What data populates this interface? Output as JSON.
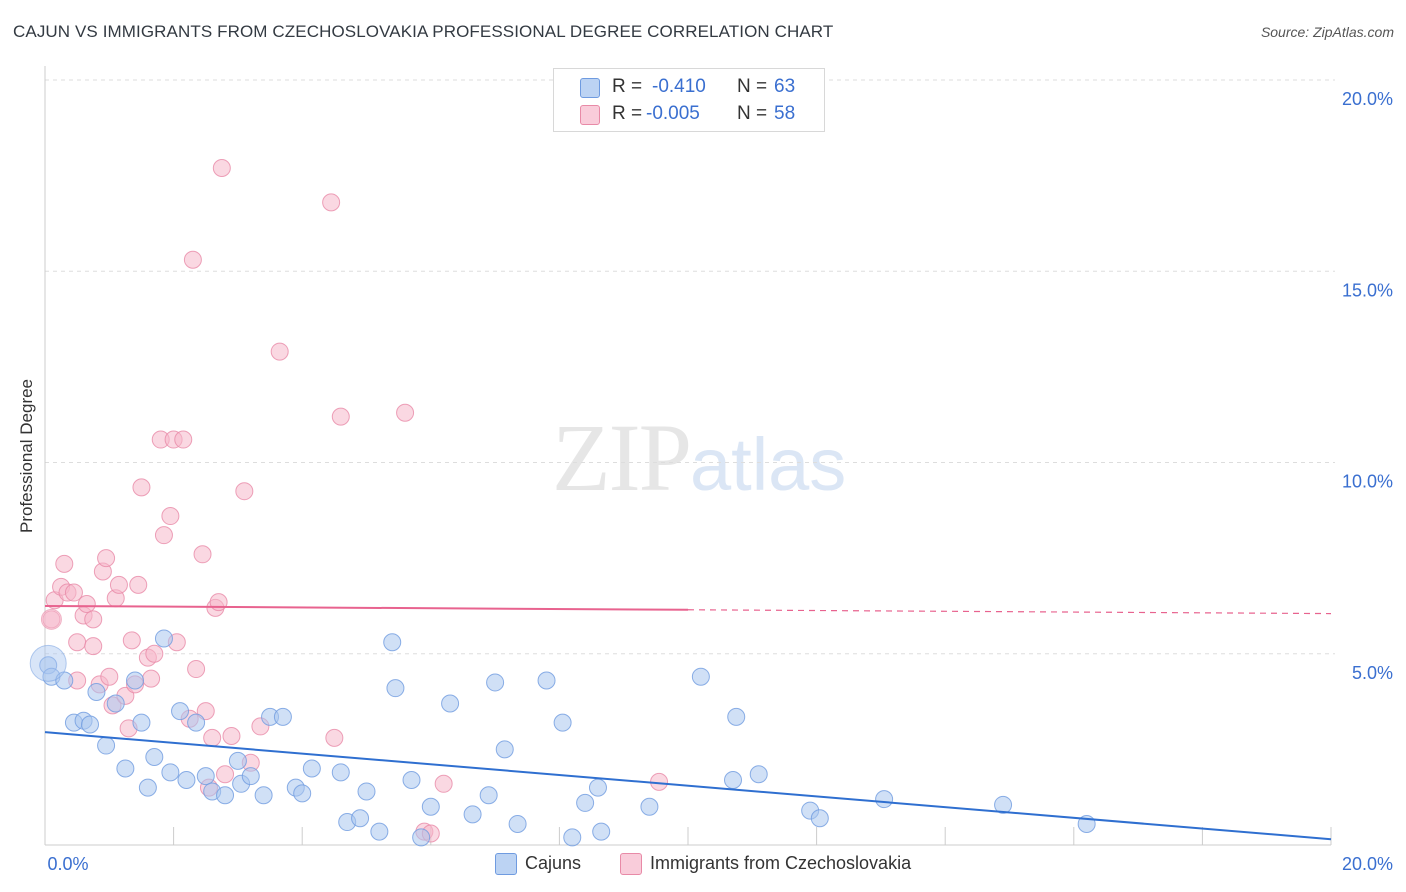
{
  "header": {
    "title": "CAJUN VS IMMIGRANTS FROM CZECHOSLOVAKIA PROFESSIONAL DEGREE CORRELATION CHART",
    "source": "Source: ZipAtlas.com"
  },
  "watermark": {
    "zip": "ZIP",
    "atlas": "atlas"
  },
  "legend": {
    "rows": [
      {
        "r_label": "R =",
        "r_value": "-0.410",
        "n_label": "N =",
        "n_value": "63",
        "color": "#a9c6ef"
      },
      {
        "r_label": "R =",
        "r_value": "-0.005",
        "n_label": "N =",
        "n_value": "58",
        "color": "#f5b8cb"
      }
    ]
  },
  "bottom_legend": [
    "Cajuns",
    "Immigrants from Czechoslovakia"
  ],
  "colors": {
    "blue_fill": "#a9c6ef",
    "blue_stroke": "#6f9be0",
    "blue_line": "#2f6fd0",
    "pink_fill": "#f5b8cb",
    "pink_stroke": "#e88aa7",
    "pink_line": "#e8638f",
    "tick_text": "#3a6fd0",
    "grid": "#dddddd"
  },
  "chart_data": {
    "type": "scatter",
    "title": "CAJUN VS IMMIGRANTS FROM CZECHOSLOVAKIA PROFESSIONAL DEGREE CORRELATION CHART",
    "xlabel": "",
    "ylabel": "Professional Degree",
    "xlim": [
      0,
      20
    ],
    "ylim": [
      0,
      20
    ],
    "x_tick_labels": [
      "0.0%",
      "20.0%"
    ],
    "y_ticks": [
      5,
      10,
      15,
      20
    ],
    "y_tick_labels": [
      "5.0%",
      "10.0%",
      "15.0%",
      "20.0%"
    ],
    "grid": true,
    "series": [
      {
        "name": "Cajuns",
        "color": "#a9c6ef",
        "points": [
          [
            0.05,
            4.7
          ],
          [
            0.1,
            4.4
          ],
          [
            0.3,
            4.3
          ],
          [
            0.45,
            3.2
          ],
          [
            0.6,
            3.25
          ],
          [
            0.7,
            3.15
          ],
          [
            0.8,
            4.0
          ],
          [
            0.95,
            2.6
          ],
          [
            1.1,
            3.7
          ],
          [
            1.25,
            2.0
          ],
          [
            1.4,
            4.3
          ],
          [
            1.5,
            3.2
          ],
          [
            1.6,
            1.5
          ],
          [
            1.7,
            2.3
          ],
          [
            1.85,
            5.4
          ],
          [
            1.95,
            1.9
          ],
          [
            2.1,
            3.5
          ],
          [
            2.2,
            1.7
          ],
          [
            2.35,
            3.2
          ],
          [
            2.5,
            1.8
          ],
          [
            2.6,
            1.4
          ],
          [
            2.8,
            1.3
          ],
          [
            3.0,
            2.2
          ],
          [
            3.05,
            1.6
          ],
          [
            3.2,
            1.8
          ],
          [
            3.4,
            1.3
          ],
          [
            3.5,
            3.35
          ],
          [
            3.7,
            3.35
          ],
          [
            3.9,
            1.5
          ],
          [
            4.0,
            1.35
          ],
          [
            4.15,
            2.0
          ],
          [
            4.6,
            1.9
          ],
          [
            4.7,
            0.6
          ],
          [
            4.9,
            0.7
          ],
          [
            5.0,
            1.4
          ],
          [
            5.2,
            0.35
          ],
          [
            5.4,
            5.3
          ],
          [
            5.45,
            4.1
          ],
          [
            5.7,
            1.7
          ],
          [
            5.85,
            0.2
          ],
          [
            6.0,
            1.0
          ],
          [
            6.3,
            3.7
          ],
          [
            6.65,
            0.8
          ],
          [
            6.9,
            1.3
          ],
          [
            7.0,
            4.25
          ],
          [
            7.15,
            2.5
          ],
          [
            7.35,
            0.55
          ],
          [
            7.8,
            4.3
          ],
          [
            8.05,
            3.2
          ],
          [
            8.2,
            0.2
          ],
          [
            8.4,
            1.1
          ],
          [
            8.6,
            1.5
          ],
          [
            8.65,
            0.35
          ],
          [
            9.4,
            1.0
          ],
          [
            10.2,
            4.4
          ],
          [
            10.7,
            1.7
          ],
          [
            10.75,
            3.35
          ],
          [
            11.1,
            1.85
          ],
          [
            11.9,
            0.9
          ],
          [
            12.05,
            0.7
          ],
          [
            13.05,
            1.2
          ],
          [
            14.9,
            1.05
          ],
          [
            16.2,
            0.55
          ]
        ]
      },
      {
        "name": "Immigrants from Czechoslovakia",
        "color": "#f5b8cb",
        "points": [
          [
            0.1,
            5.9
          ],
          [
            0.15,
            6.4
          ],
          [
            0.25,
            6.75
          ],
          [
            0.3,
            7.35
          ],
          [
            0.35,
            6.6
          ],
          [
            0.45,
            6.6
          ],
          [
            0.5,
            5.3
          ],
          [
            0.5,
            4.3
          ],
          [
            0.6,
            6.0
          ],
          [
            0.65,
            6.3
          ],
          [
            0.75,
            5.9
          ],
          [
            0.75,
            5.2
          ],
          [
            0.85,
            4.2
          ],
          [
            0.9,
            7.15
          ],
          [
            0.95,
            7.5
          ],
          [
            1.0,
            4.4
          ],
          [
            1.05,
            3.65
          ],
          [
            1.1,
            6.45
          ],
          [
            1.15,
            6.8
          ],
          [
            1.25,
            3.9
          ],
          [
            1.3,
            3.05
          ],
          [
            1.35,
            5.35
          ],
          [
            1.4,
            4.2
          ],
          [
            1.45,
            6.8
          ],
          [
            1.5,
            9.35
          ],
          [
            1.6,
            4.9
          ],
          [
            1.65,
            4.35
          ],
          [
            1.7,
            5.0
          ],
          [
            1.8,
            10.6
          ],
          [
            1.85,
            8.1
          ],
          [
            1.95,
            8.6
          ],
          [
            2.0,
            10.6
          ],
          [
            2.05,
            5.3
          ],
          [
            2.15,
            10.6
          ],
          [
            2.25,
            3.3
          ],
          [
            2.3,
            15.3
          ],
          [
            2.35,
            4.6
          ],
          [
            2.45,
            7.6
          ],
          [
            2.5,
            3.5
          ],
          [
            2.55,
            1.5
          ],
          [
            2.6,
            2.8
          ],
          [
            2.65,
            6.2
          ],
          [
            2.7,
            6.35
          ],
          [
            2.75,
            17.7
          ],
          [
            2.8,
            1.85
          ],
          [
            2.9,
            2.85
          ],
          [
            3.1,
            9.25
          ],
          [
            3.2,
            2.15
          ],
          [
            3.35,
            3.1
          ],
          [
            3.65,
            12.9
          ],
          [
            4.45,
            16.8
          ],
          [
            4.5,
            2.8
          ],
          [
            4.6,
            11.2
          ],
          [
            5.6,
            11.3
          ],
          [
            5.9,
            0.35
          ],
          [
            6.0,
            0.3
          ],
          [
            6.2,
            1.6
          ],
          [
            9.55,
            1.65
          ]
        ]
      }
    ],
    "trend_lines": [
      {
        "series": "Cajuns",
        "x": [
          0,
          20
        ],
        "y": [
          2.95,
          0.15
        ],
        "style": "solid"
      },
      {
        "series": "Immigrants from Czechoslovakia",
        "x": [
          0,
          10
        ],
        "y": [
          6.25,
          6.15
        ],
        "style": "solid"
      },
      {
        "series": "Immigrants from Czechoslovakia",
        "x": [
          10,
          20
        ],
        "y": [
          6.15,
          6.05
        ],
        "style": "dashed"
      }
    ]
  }
}
